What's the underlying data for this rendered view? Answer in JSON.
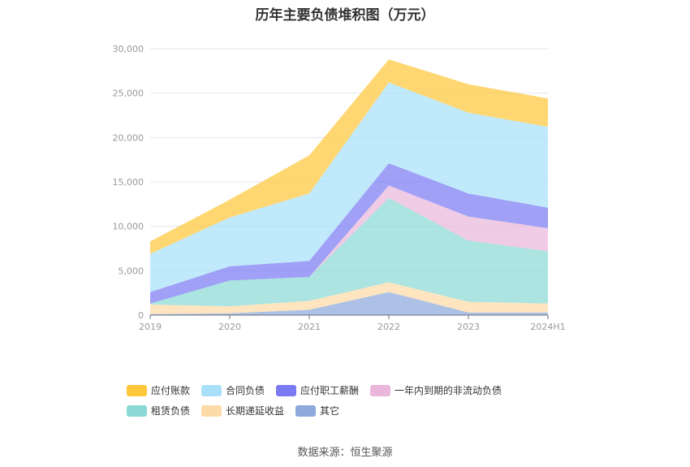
{
  "title": "历年主要负债堆积图（万元）",
  "source": "数据来源：恒生聚源",
  "chart_data": {
    "type": "area",
    "stacked": true,
    "title": "历年主要负债堆积图（万元）",
    "categories": [
      "2019",
      "2020",
      "2021",
      "2022",
      "2023",
      "2024H1"
    ],
    "ylim": [
      0,
      30000
    ],
    "yticks": [
      "0",
      "5,000",
      "10,000",
      "15,000",
      "20,000",
      "25,000",
      "30,000"
    ],
    "grid": true,
    "legend_position": "bottom",
    "series": [
      {
        "name": "其它",
        "color": "#8EA9DC",
        "values": [
          100,
          200,
          600,
          2600,
          300,
          300
        ]
      },
      {
        "name": "长期递延收益",
        "color": "#FDDBA8",
        "values": [
          1100,
          800,
          1000,
          1100,
          1200,
          1000
        ]
      },
      {
        "name": "租赁负债",
        "color": "#8AD9D6",
        "values": [
          100,
          2900,
          2700,
          9500,
          6900,
          5900
        ]
      },
      {
        "name": "一年内到期的非流动负债",
        "color": "#EAB7DB",
        "values": [
          0,
          0,
          0,
          1400,
          2700,
          2600
        ]
      },
      {
        "name": "应付职工薪酬",
        "color": "#7A7BF2",
        "values": [
          1300,
          1600,
          1800,
          2500,
          2600,
          2300
        ]
      },
      {
        "name": "合同负债",
        "color": "#A8E0FA",
        "values": [
          4300,
          5500,
          7600,
          9100,
          9100,
          9100
        ]
      },
      {
        "name": "应付账款",
        "color": "#FFC73B",
        "values": [
          1400,
          2000,
          4300,
          2600,
          3200,
          3200
        ]
      }
    ],
    "legend_order": [
      "应付账款",
      "合同负债",
      "应付职工薪酬",
      "一年内到期的非流动负债",
      "租赁负债",
      "长期递延收益",
      "其它"
    ]
  }
}
